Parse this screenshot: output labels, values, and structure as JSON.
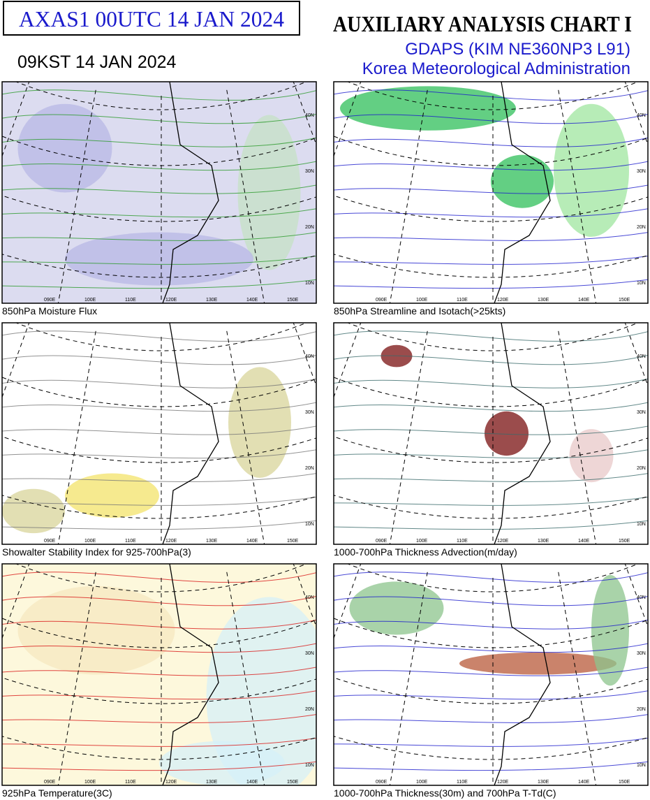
{
  "header": {
    "code": "AXAS1  00UTC 14 JAN 2024",
    "local_time": "09KST 14 JAN 2024",
    "title": "AUXILIARY ANALYSIS CHART  I",
    "model": "GDAPS (KIM NE360NP3 L91)",
    "agency": "Korea Meteorological Administration"
  },
  "map_labels": {
    "lon": [
      "090E",
      "100E",
      "110E",
      "120E",
      "130E",
      "140E",
      "150E"
    ],
    "lat": [
      "40N",
      "30N",
      "20N",
      "10N"
    ]
  },
  "panels": [
    {
      "caption": "850hPa Moisture Flux"
    },
    {
      "caption": "850hPa Streamline and Isotach(>25kts)"
    },
    {
      "caption": "Showalter Stability Index for 925-700hPa(3)"
    },
    {
      "caption": "1000-700hPa Thickness Advection(m/day)"
    },
    {
      "caption": "925hPa Temperature(3C)"
    },
    {
      "caption": "1000-700hPa Thickness(30m) and 700hPa T-Td(C)"
    }
  ]
}
